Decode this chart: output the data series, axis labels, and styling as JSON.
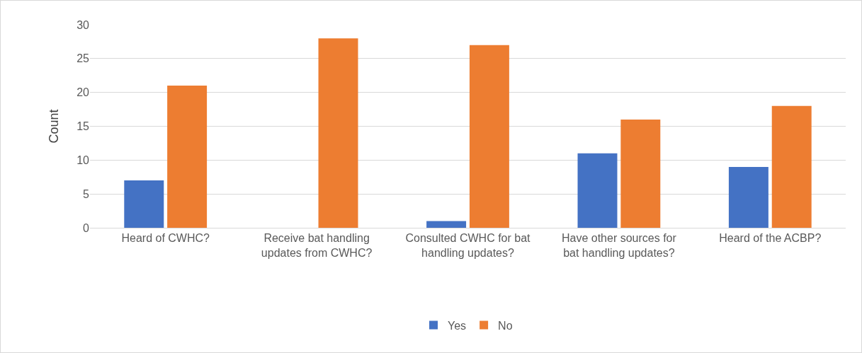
{
  "chart_data": {
    "type": "bar",
    "ylabel": "Count",
    "categories": [
      "Heard of CWHC?",
      "Receive bat handling updates from CWHC?",
      "Consulted CWHC for bat handling updates?",
      "Have other sources for bat handling updates?",
      "Heard of the ACBP?"
    ],
    "series": [
      {
        "name": "Yes",
        "color": "#4472c4",
        "values": [
          7,
          0,
          1,
          11,
          9
        ]
      },
      {
        "name": "No",
        "color": "#ed7d31",
        "values": [
          21,
          28,
          27,
          16,
          18
        ]
      }
    ],
    "ylim": [
      0,
      30
    ],
    "yticks": [
      0,
      5,
      10,
      15,
      20,
      25,
      30
    ],
    "grid": "y",
    "legend": "bottom"
  }
}
